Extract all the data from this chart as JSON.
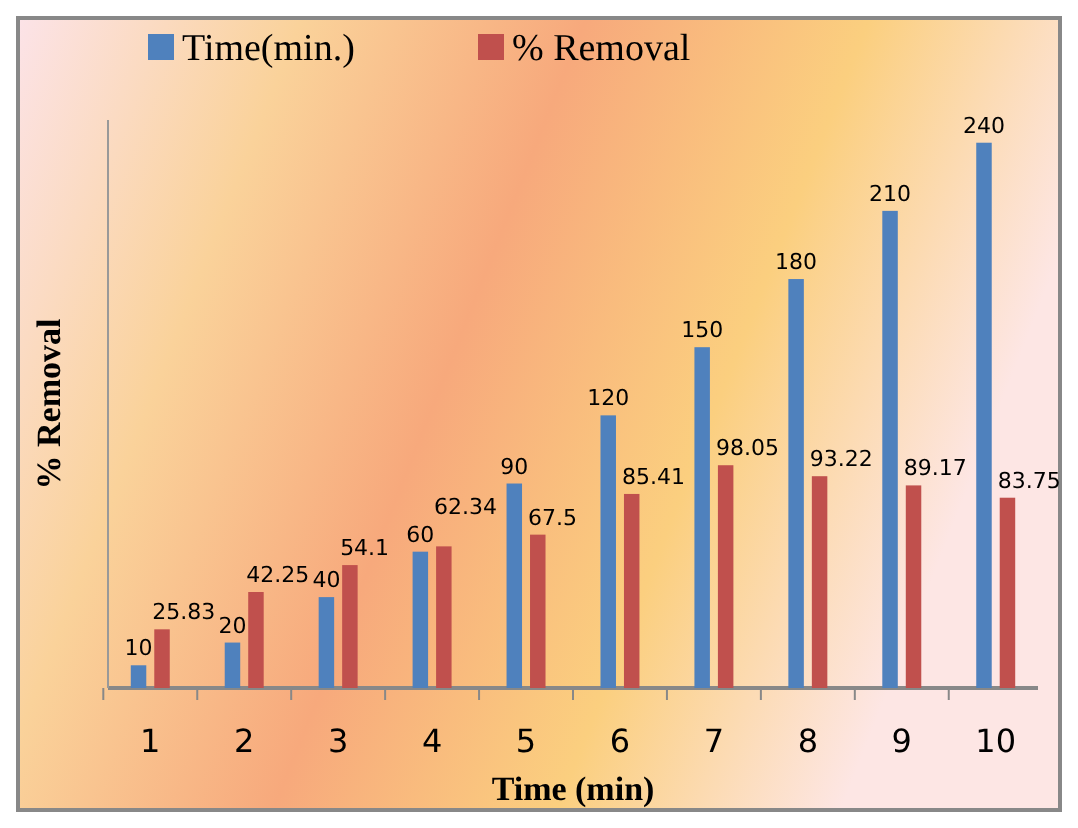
{
  "chart_data": {
    "type": "bar",
    "xlabel": "Time (min)",
    "ylabel": "% Removal",
    "categories": [
      "1",
      "2",
      "3",
      "4",
      "5",
      "6",
      "7",
      "8",
      "9",
      "10"
    ],
    "series": [
      {
        "name": "Time(min.)",
        "color": "#4f81bd",
        "values": [
          10,
          20,
          40,
          60,
          90,
          120,
          150,
          180,
          210,
          240
        ]
      },
      {
        "name": "% Removal",
        "color": "#c0504d",
        "values": [
          25.83,
          42.25,
          54.1,
          62.34,
          67.5,
          85.41,
          98.05,
          93.22,
          89.17,
          83.75
        ]
      }
    ],
    "ylim": [
      0,
      250
    ],
    "tick_labels": "x",
    "data_labels": true,
    "legend": "top",
    "grid": false
  }
}
